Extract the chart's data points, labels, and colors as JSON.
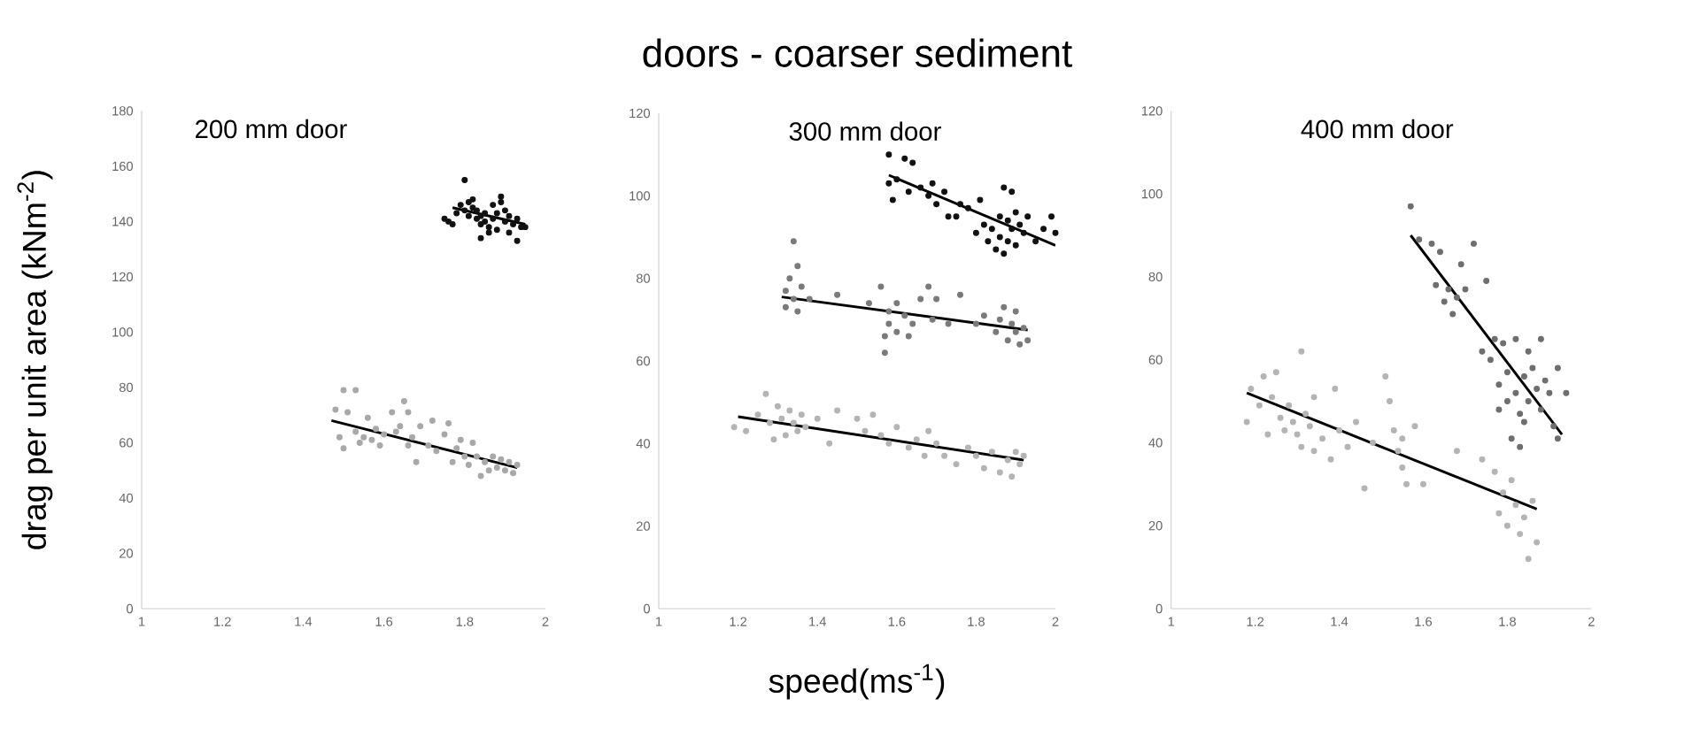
{
  "chart_data": [
    {
      "type": "scatter",
      "subtitle": "200 mm door",
      "ylabel": "drag per unit area (kNm$^{-2}$)",
      "xlim": [
        1,
        2
      ],
      "ylim": [
        0,
        180
      ],
      "xticks": [
        1,
        1.2,
        1.4,
        1.6,
        1.8,
        2
      ],
      "yticks": [
        0,
        20,
        40,
        60,
        80,
        100,
        120,
        140,
        160,
        180
      ],
      "series": [
        {
          "marker": "circle",
          "color": "#111111",
          "x": [
            1.75,
            1.77,
            1.78,
            1.79,
            1.8,
            1.8,
            1.81,
            1.81,
            1.82,
            1.82,
            1.83,
            1.83,
            1.84,
            1.84,
            1.85,
            1.85,
            1.86,
            1.87,
            1.87,
            1.88,
            1.88,
            1.89,
            1.89,
            1.9,
            1.9,
            1.91,
            1.91,
            1.92,
            1.93,
            1.93,
            1.94,
            1.95,
            1.76,
            1.86,
            1.84
          ],
          "values": [
            141,
            139,
            143,
            146,
            155,
            144,
            147,
            142,
            148,
            145,
            141,
            144,
            139,
            134,
            143,
            140,
            138,
            146,
            141,
            137,
            143,
            149,
            147,
            140,
            144,
            136,
            142,
            139,
            141,
            133,
            138,
            138,
            140,
            136,
            142
          ]
        },
        {
          "marker": "circle",
          "color": "#a8a8a8",
          "x": [
            1.48,
            1.49,
            1.5,
            1.5,
            1.51,
            1.53,
            1.53,
            1.54,
            1.55,
            1.56,
            1.57,
            1.58,
            1.59,
            1.6,
            1.62,
            1.63,
            1.64,
            1.65,
            1.66,
            1.66,
            1.67,
            1.68,
            1.69,
            1.71,
            1.72,
            1.73,
            1.75,
            1.76,
            1.77,
            1.78,
            1.79,
            1.8,
            1.81,
            1.82,
            1.83,
            1.84,
            1.85,
            1.86,
            1.87,
            1.88,
            1.89,
            1.9,
            1.91,
            1.92,
            1.93
          ],
          "values": [
            72,
            62,
            79,
            58,
            71,
            79,
            64,
            60,
            62,
            69,
            61,
            65,
            59,
            63,
            71,
            64,
            66,
            75,
            71,
            59,
            62,
            53,
            66,
            59,
            68,
            57,
            63,
            67,
            53,
            58,
            61,
            55,
            52,
            60,
            55,
            48,
            53,
            50,
            55,
            51,
            54,
            50,
            53,
            49,
            52
          ]
        },
        {
          "type": "line",
          "marker": "none",
          "color": "#000000",
          "x": [
            1.47,
            1.93
          ],
          "values": [
            68,
            51
          ]
        },
        {
          "type": "line",
          "marker": "none",
          "color": "#000000",
          "x": [
            1.77,
            1.95
          ],
          "values": [
            145,
            139
          ]
        }
      ]
    },
    {
      "type": "scatter",
      "title": "doors - coarser sediment",
      "subtitle": "300 mm door",
      "xlabel": "speed(ms$^{-1}$)",
      "xlim": [
        1,
        2
      ],
      "ylim": [
        0,
        120
      ],
      "xticks": [
        1,
        1.2,
        1.4,
        1.6,
        1.8,
        2
      ],
      "yticks": [
        0,
        20,
        40,
        60,
        80,
        100,
        120
      ],
      "series": [
        {
          "marker": "circle",
          "color": "#111111",
          "x": [
            1.58,
            1.58,
            1.59,
            1.6,
            1.62,
            1.63,
            1.64,
            1.66,
            1.68,
            1.69,
            1.7,
            1.72,
            1.73,
            1.75,
            1.76,
            1.78,
            1.8,
            1.81,
            1.82,
            1.83,
            1.84,
            1.85,
            1.86,
            1.86,
            1.87,
            1.87,
            1.88,
            1.88,
            1.89,
            1.89,
            1.9,
            1.9,
            1.91,
            1.92,
            1.93,
            1.95,
            1.97,
            1.99,
            2.0
          ],
          "values": [
            110,
            103,
            99,
            104,
            109,
            101,
            108,
            102,
            100,
            103,
            98,
            101,
            95,
            95,
            98,
            97,
            91,
            99,
            93,
            89,
            92,
            87,
            95,
            90,
            102,
            86,
            94,
            89,
            101,
            92,
            96,
            88,
            93,
            91,
            95,
            89,
            92,
            95,
            91
          ]
        },
        {
          "marker": "circle",
          "color": "#7a7a7a",
          "x": [
            1.32,
            1.32,
            1.33,
            1.34,
            1.34,
            1.35,
            1.35,
            1.36,
            1.38,
            1.45,
            1.53,
            1.56,
            1.57,
            1.57,
            1.58,
            1.58,
            1.6,
            1.6,
            1.62,
            1.63,
            1.64,
            1.66,
            1.68,
            1.69,
            1.7,
            1.73,
            1.76,
            1.8,
            1.82,
            1.85,
            1.86,
            1.87,
            1.88,
            1.89,
            1.9,
            1.9,
            1.91,
            1.92,
            1.93
          ],
          "values": [
            77,
            73,
            80,
            89,
            75,
            83,
            72,
            78,
            75,
            76,
            74,
            78,
            66,
            62,
            72,
            69,
            74,
            67,
            71,
            66,
            69,
            75,
            78,
            70,
            75,
            69,
            76,
            69,
            71,
            67,
            70,
            73,
            65,
            69,
            72,
            67,
            64,
            68,
            65
          ]
        },
        {
          "marker": "circle",
          "color": "#b4b4b4",
          "x": [
            1.19,
            1.22,
            1.25,
            1.27,
            1.28,
            1.29,
            1.3,
            1.31,
            1.32,
            1.33,
            1.34,
            1.35,
            1.36,
            1.37,
            1.4,
            1.43,
            1.45,
            1.5,
            1.52,
            1.54,
            1.56,
            1.58,
            1.6,
            1.63,
            1.65,
            1.67,
            1.68,
            1.7,
            1.72,
            1.75,
            1.78,
            1.8,
            1.82,
            1.84,
            1.86,
            1.88,
            1.89,
            1.9,
            1.91,
            1.92
          ],
          "values": [
            44,
            43,
            47,
            52,
            45,
            41,
            49,
            46,
            42,
            48,
            45,
            43,
            47,
            44,
            46,
            40,
            48,
            46,
            43,
            47,
            42,
            40,
            44,
            39,
            41,
            37,
            43,
            40,
            37,
            35,
            39,
            37,
            34,
            38,
            33,
            36,
            32,
            38,
            35,
            37
          ]
        },
        {
          "type": "line",
          "marker": "none",
          "color": "#000000",
          "x": [
            1.58,
            2.0
          ],
          "values": [
            105,
            88
          ]
        },
        {
          "type": "line",
          "marker": "none",
          "color": "#000000",
          "x": [
            1.31,
            1.93
          ],
          "values": [
            75.5,
            67.5
          ]
        },
        {
          "type": "line",
          "marker": "none",
          "color": "#000000",
          "x": [
            1.2,
            1.92
          ],
          "values": [
            46.5,
            36
          ]
        }
      ]
    },
    {
      "type": "scatter",
      "subtitle": "400 mm door",
      "xlim": [
        1,
        2
      ],
      "ylim": [
        0,
        120
      ],
      "xticks": [
        1,
        1.2,
        1.4,
        1.6,
        1.8,
        2
      ],
      "yticks": [
        0,
        20,
        40,
        60,
        80,
        100,
        120
      ],
      "series": [
        {
          "marker": "circle",
          "color": "#6e6e6e",
          "x": [
            1.57,
            1.59,
            1.62,
            1.63,
            1.64,
            1.65,
            1.66,
            1.67,
            1.68,
            1.69,
            1.7,
            1.72,
            1.74,
            1.75,
            1.76,
            1.77,
            1.78,
            1.78,
            1.79,
            1.8,
            1.8,
            1.81,
            1.82,
            1.82,
            1.83,
            1.83,
            1.84,
            1.84,
            1.85,
            1.85,
            1.86,
            1.87,
            1.88,
            1.88,
            1.89,
            1.9,
            1.91,
            1.92,
            1.92,
            1.94
          ],
          "values": [
            97,
            89,
            88,
            78,
            86,
            74,
            77,
            71,
            75,
            83,
            77,
            88,
            62,
            79,
            60,
            65,
            54,
            48,
            64,
            57,
            50,
            41,
            65,
            52,
            47,
            39,
            56,
            45,
            62,
            50,
            58,
            53,
            65,
            48,
            55,
            52,
            44,
            58,
            41,
            52
          ]
        },
        {
          "marker": "circle",
          "color": "#b4b4b4",
          "x": [
            1.18,
            1.19,
            1.21,
            1.22,
            1.23,
            1.24,
            1.25,
            1.26,
            1.27,
            1.28,
            1.29,
            1.3,
            1.31,
            1.31,
            1.32,
            1.33,
            1.34,
            1.34,
            1.36,
            1.38,
            1.39,
            1.4,
            1.42,
            1.44,
            1.46,
            1.48,
            1.51,
            1.52,
            1.53,
            1.54,
            1.55,
            1.55,
            1.56,
            1.58,
            1.6,
            1.68,
            1.74,
            1.77,
            1.78,
            1.79,
            1.8,
            1.81,
            1.82,
            1.83,
            1.84,
            1.85,
            1.86,
            1.87
          ],
          "values": [
            45,
            53,
            49,
            56,
            42,
            51,
            57,
            46,
            43,
            49,
            45,
            42,
            62,
            39,
            47,
            44,
            51,
            38,
            41,
            36,
            53,
            43,
            39,
            45,
            29,
            40,
            56,
            50,
            43,
            38,
            34,
            41,
            30,
            44,
            30,
            38,
            36,
            33,
            23,
            28,
            20,
            31,
            25,
            18,
            22,
            12,
            26,
            16
          ]
        },
        {
          "type": "line",
          "marker": "none",
          "color": "#000000",
          "x": [
            1.57,
            1.93
          ],
          "values": [
            90,
            42
          ]
        },
        {
          "type": "line",
          "marker": "none",
          "color": "#000000",
          "x": [
            1.18,
            1.87
          ],
          "values": [
            52,
            24
          ]
        }
      ]
    }
  ]
}
